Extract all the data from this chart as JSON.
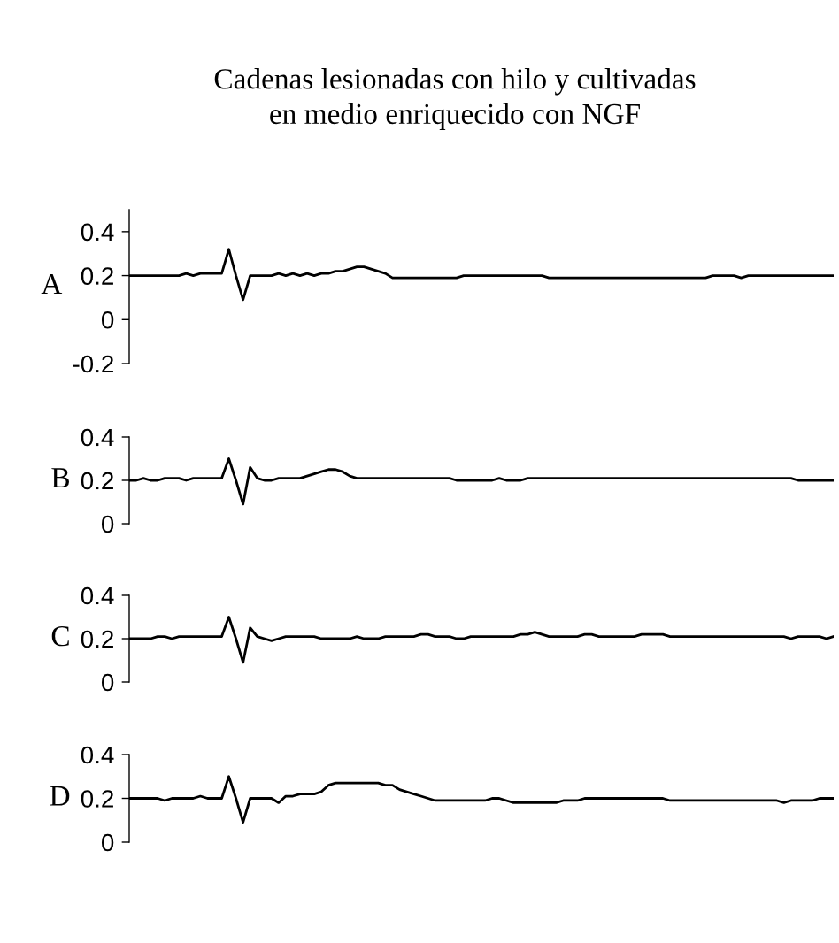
{
  "chart_data": [
    {
      "type": "line",
      "title": "Cadenas lesionadas con hilo y cultivadas\nen medio enriquecido con NGF",
      "ylabel": "A",
      "tick_labels": "y",
      "ylim": [
        -0.2,
        0.5
      ],
      "yticks": [
        {
          "value": 0.4,
          "label": "0.4"
        },
        {
          "value": 0.2,
          "label": "0.2"
        },
        {
          "value": 0,
          "label": "0"
        },
        {
          "value": -0.2,
          "label": "-0.2"
        }
      ],
      "categories": [
        null,
        null,
        null,
        null,
        null,
        null,
        null,
        null,
        null,
        null,
        null,
        null,
        null,
        null,
        null,
        null,
        null,
        null,
        null,
        null,
        null,
        null,
        null,
        null,
        null,
        null,
        null,
        null,
        null,
        null,
        null,
        null,
        null,
        null,
        null,
        null,
        null,
        null,
        null,
        null,
        null,
        null,
        null,
        null,
        null,
        null,
        null,
        null,
        null,
        null,
        null,
        null,
        null,
        null,
        null,
        null,
        null,
        null,
        null,
        null,
        null,
        null,
        null,
        null,
        null,
        null,
        null,
        null,
        null,
        null,
        null,
        null,
        null,
        null,
        null,
        null,
        null,
        null,
        null,
        null,
        null,
        null,
        null,
        null,
        null,
        null,
        null,
        null,
        null,
        null,
        null,
        null,
        null,
        null,
        null,
        null,
        null,
        null,
        null,
        null
      ],
      "series": [
        {
          "color": "#000000",
          "values": [
            0.2,
            0.2,
            0.2,
            0.2,
            0.2,
            0.2,
            0.2,
            0.2,
            0.21,
            0.2,
            0.21,
            0.21,
            0.21,
            0.21,
            0.32,
            0.2,
            0.09,
            0.2,
            0.2,
            0.2,
            0.2,
            0.21,
            0.2,
            0.21,
            0.2,
            0.21,
            0.2,
            0.21,
            0.21,
            0.22,
            0.22,
            0.23,
            0.24,
            0.24,
            0.23,
            0.22,
            0.21,
            0.19,
            0.19,
            0.19,
            0.19,
            0.19,
            0.19,
            0.19,
            0.19,
            0.19,
            0.19,
            0.2,
            0.2,
            0.2,
            0.2,
            0.2,
            0.2,
            0.2,
            0.2,
            0.2,
            0.2,
            0.2,
            0.2,
            0.19,
            0.19,
            0.19,
            0.19,
            0.19,
            0.19,
            0.19,
            0.19,
            0.19,
            0.19,
            0.19,
            0.19,
            0.19,
            0.19,
            0.19,
            0.19,
            0.19,
            0.19,
            0.19,
            0.19,
            0.19,
            0.19,
            0.19,
            0.2,
            0.2,
            0.2,
            0.2,
            0.19,
            0.2,
            0.2,
            0.2,
            0.2,
            0.2,
            0.2,
            0.2,
            0.2,
            0.2,
            0.2,
            0.2,
            0.2,
            0.2
          ]
        }
      ]
    },
    {
      "type": "line",
      "ylabel": "B",
      "tick_labels": "y",
      "ylim": [
        0,
        0.4
      ],
      "yticks": [
        {
          "value": 0.4,
          "label": "0.4"
        },
        {
          "value": 0.2,
          "label": "0.2"
        },
        {
          "value": 0,
          "label": "0"
        }
      ],
      "categories": [
        null,
        null,
        null,
        null,
        null,
        null,
        null,
        null,
        null,
        null,
        null,
        null,
        null,
        null,
        null,
        null,
        null,
        null,
        null,
        null,
        null,
        null,
        null,
        null,
        null,
        null,
        null,
        null,
        null,
        null,
        null,
        null,
        null,
        null,
        null,
        null,
        null,
        null,
        null,
        null,
        null,
        null,
        null,
        null,
        null,
        null,
        null,
        null,
        null,
        null,
        null,
        null,
        null,
        null,
        null,
        null,
        null,
        null,
        null,
        null,
        null,
        null,
        null,
        null,
        null,
        null,
        null,
        null,
        null,
        null,
        null,
        null,
        null,
        null,
        null,
        null,
        null,
        null,
        null,
        null,
        null,
        null,
        null,
        null,
        null,
        null,
        null,
        null,
        null,
        null,
        null,
        null,
        null,
        null,
        null,
        null,
        null,
        null,
        null,
        null
      ],
      "series": [
        {
          "color": "#000000",
          "values": [
            0.2,
            0.2,
            0.21,
            0.2,
            0.2,
            0.21,
            0.21,
            0.21,
            0.2,
            0.21,
            0.21,
            0.21,
            0.21,
            0.21,
            0.3,
            0.2,
            0.09,
            0.26,
            0.21,
            0.2,
            0.2,
            0.21,
            0.21,
            0.21,
            0.21,
            0.22,
            0.23,
            0.24,
            0.25,
            0.25,
            0.24,
            0.22,
            0.21,
            0.21,
            0.21,
            0.21,
            0.21,
            0.21,
            0.21,
            0.21,
            0.21,
            0.21,
            0.21,
            0.21,
            0.21,
            0.21,
            0.2,
            0.2,
            0.2,
            0.2,
            0.2,
            0.2,
            0.21,
            0.2,
            0.2,
            0.2,
            0.21,
            0.21,
            0.21,
            0.21,
            0.21,
            0.21,
            0.21,
            0.21,
            0.21,
            0.21,
            0.21,
            0.21,
            0.21,
            0.21,
            0.21,
            0.21,
            0.21,
            0.21,
            0.21,
            0.21,
            0.21,
            0.21,
            0.21,
            0.21,
            0.21,
            0.21,
            0.21,
            0.21,
            0.21,
            0.21,
            0.21,
            0.21,
            0.21,
            0.21,
            0.21,
            0.21,
            0.21,
            0.21,
            0.2,
            0.2,
            0.2,
            0.2,
            0.2,
            0.2
          ]
        }
      ]
    },
    {
      "type": "line",
      "ylabel": "C",
      "tick_labels": "y",
      "ylim": [
        0,
        0.4
      ],
      "yticks": [
        {
          "value": 0.4,
          "label": "0.4"
        },
        {
          "value": 0.2,
          "label": "0.2"
        },
        {
          "value": 0,
          "label": "0"
        }
      ],
      "categories": [
        null,
        null,
        null,
        null,
        null,
        null,
        null,
        null,
        null,
        null,
        null,
        null,
        null,
        null,
        null,
        null,
        null,
        null,
        null,
        null,
        null,
        null,
        null,
        null,
        null,
        null,
        null,
        null,
        null,
        null,
        null,
        null,
        null,
        null,
        null,
        null,
        null,
        null,
        null,
        null,
        null,
        null,
        null,
        null,
        null,
        null,
        null,
        null,
        null,
        null,
        null,
        null,
        null,
        null,
        null,
        null,
        null,
        null,
        null,
        null,
        null,
        null,
        null,
        null,
        null,
        null,
        null,
        null,
        null,
        null,
        null,
        null,
        null,
        null,
        null,
        null,
        null,
        null,
        null,
        null,
        null,
        null,
        null,
        null,
        null,
        null,
        null,
        null,
        null,
        null,
        null,
        null,
        null,
        null,
        null,
        null,
        null,
        null,
        null,
        null
      ],
      "series": [
        {
          "color": "#000000",
          "values": [
            0.2,
            0.2,
            0.2,
            0.2,
            0.21,
            0.21,
            0.2,
            0.21,
            0.21,
            0.21,
            0.21,
            0.21,
            0.21,
            0.21,
            0.3,
            0.2,
            0.09,
            0.25,
            0.21,
            0.2,
            0.19,
            0.2,
            0.21,
            0.21,
            0.21,
            0.21,
            0.21,
            0.2,
            0.2,
            0.2,
            0.2,
            0.2,
            0.21,
            0.2,
            0.2,
            0.2,
            0.21,
            0.21,
            0.21,
            0.21,
            0.21,
            0.22,
            0.22,
            0.21,
            0.21,
            0.21,
            0.2,
            0.2,
            0.21,
            0.21,
            0.21,
            0.21,
            0.21,
            0.21,
            0.21,
            0.22,
            0.22,
            0.23,
            0.22,
            0.21,
            0.21,
            0.21,
            0.21,
            0.21,
            0.22,
            0.22,
            0.21,
            0.21,
            0.21,
            0.21,
            0.21,
            0.21,
            0.22,
            0.22,
            0.22,
            0.22,
            0.21,
            0.21,
            0.21,
            0.21,
            0.21,
            0.21,
            0.21,
            0.21,
            0.21,
            0.21,
            0.21,
            0.21,
            0.21,
            0.21,
            0.21,
            0.21,
            0.21,
            0.2,
            0.21,
            0.21,
            0.21,
            0.21,
            0.2,
            0.21
          ]
        }
      ]
    },
    {
      "type": "line",
      "ylabel": "D",
      "tick_labels": "y",
      "ylim": [
        0,
        0.4
      ],
      "yticks": [
        {
          "value": 0.4,
          "label": "0.4"
        },
        {
          "value": 0.2,
          "label": "0.2"
        },
        {
          "value": 0,
          "label": "0"
        }
      ],
      "categories": [
        null,
        null,
        null,
        null,
        null,
        null,
        null,
        null,
        null,
        null,
        null,
        null,
        null,
        null,
        null,
        null,
        null,
        null,
        null,
        null,
        null,
        null,
        null,
        null,
        null,
        null,
        null,
        null,
        null,
        null,
        null,
        null,
        null,
        null,
        null,
        null,
        null,
        null,
        null,
        null,
        null,
        null,
        null,
        null,
        null,
        null,
        null,
        null,
        null,
        null,
        null,
        null,
        null,
        null,
        null,
        null,
        null,
        null,
        null,
        null,
        null,
        null,
        null,
        null,
        null,
        null,
        null,
        null,
        null,
        null,
        null,
        null,
        null,
        null,
        null,
        null,
        null,
        null,
        null,
        null,
        null,
        null,
        null,
        null,
        null,
        null,
        null,
        null,
        null,
        null,
        null,
        null,
        null,
        null,
        null,
        null,
        null,
        null,
        null,
        null
      ],
      "series": [
        {
          "color": "#000000",
          "values": [
            0.2,
            0.2,
            0.2,
            0.2,
            0.2,
            0.19,
            0.2,
            0.2,
            0.2,
            0.2,
            0.21,
            0.2,
            0.2,
            0.2,
            0.3,
            0.2,
            0.09,
            0.2,
            0.2,
            0.2,
            0.2,
            0.18,
            0.21,
            0.21,
            0.22,
            0.22,
            0.22,
            0.23,
            0.26,
            0.27,
            0.27,
            0.27,
            0.27,
            0.27,
            0.27,
            0.27,
            0.26,
            0.26,
            0.24,
            0.23,
            0.22,
            0.21,
            0.2,
            0.19,
            0.19,
            0.19,
            0.19,
            0.19,
            0.19,
            0.19,
            0.19,
            0.2,
            0.2,
            0.19,
            0.18,
            0.18,
            0.18,
            0.18,
            0.18,
            0.18,
            0.18,
            0.19,
            0.19,
            0.19,
            0.2,
            0.2,
            0.2,
            0.2,
            0.2,
            0.2,
            0.2,
            0.2,
            0.2,
            0.2,
            0.2,
            0.2,
            0.19,
            0.19,
            0.19,
            0.19,
            0.19,
            0.19,
            0.19,
            0.19,
            0.19,
            0.19,
            0.19,
            0.19,
            0.19,
            0.19,
            0.19,
            0.19,
            0.18,
            0.19,
            0.19,
            0.19,
            0.19,
            0.2,
            0.2,
            0.2
          ]
        }
      ]
    }
  ]
}
